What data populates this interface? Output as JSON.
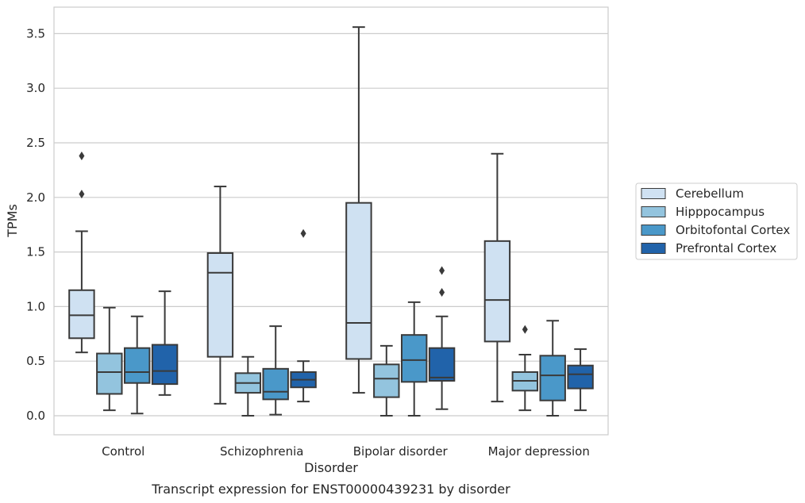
{
  "colors": {
    "Cerebellum": "#cfe1f2",
    "Hipppocampus": "#93c4de",
    "Orbitofontal Cortex": "#4a98c9",
    "Prefrontal Cortex": "#2163aa",
    "edge": "#3a3a3a",
    "grid": "#cccccc",
    "frame": "#cccccc"
  },
  "chart_data": {
    "type": "box",
    "title": "",
    "caption": "Transcript expression for ENST00000439231 by disorder",
    "xlabel": "Disorder",
    "ylabel": "TPMs",
    "ylim": [
      -0.18,
      3.67
    ],
    "yticks": [
      "0.0",
      "0.5",
      "1.0",
      "1.5",
      "2.0",
      "2.5",
      "3.0",
      "3.5"
    ],
    "grid": "horizontal",
    "legend_position": "right",
    "categories": [
      "Control",
      "Schizophrenia",
      "Bipolar disorder",
      "Major depression"
    ],
    "series": [
      {
        "name": "Cerebellum",
        "boxes": [
          {
            "whislo": 0.58,
            "q1": 0.71,
            "med": 0.92,
            "q3": 1.15,
            "whishi": 1.69,
            "fliers": [
              2.03,
              2.38
            ]
          },
          {
            "whislo": 0.11,
            "q1": 0.54,
            "med": 1.31,
            "q3": 1.49,
            "whishi": 2.1,
            "fliers": []
          },
          {
            "whislo": 0.21,
            "q1": 0.52,
            "med": 0.85,
            "q3": 1.95,
            "whishi": 3.56,
            "fliers": []
          },
          {
            "whislo": 0.13,
            "q1": 0.68,
            "med": 1.06,
            "q3": 1.6,
            "whishi": 2.4,
            "fliers": []
          }
        ]
      },
      {
        "name": "Hipppocampus",
        "boxes": [
          {
            "whislo": 0.05,
            "q1": 0.2,
            "med": 0.4,
            "q3": 0.57,
            "whishi": 0.99,
            "fliers": []
          },
          {
            "whislo": 0.0,
            "q1": 0.21,
            "med": 0.3,
            "q3": 0.39,
            "whishi": 0.54,
            "fliers": []
          },
          {
            "whislo": 0.0,
            "q1": 0.17,
            "med": 0.34,
            "q3": 0.47,
            "whishi": 0.64,
            "fliers": []
          },
          {
            "whislo": 0.05,
            "q1": 0.23,
            "med": 0.32,
            "q3": 0.4,
            "whishi": 0.56,
            "fliers": [
              0.79
            ]
          }
        ]
      },
      {
        "name": "Orbitofontal Cortex",
        "boxes": [
          {
            "whislo": 0.02,
            "q1": 0.3,
            "med": 0.4,
            "q3": 0.62,
            "whishi": 0.91,
            "fliers": []
          },
          {
            "whislo": 0.01,
            "q1": 0.15,
            "med": 0.22,
            "q3": 0.43,
            "whishi": 0.82,
            "fliers": []
          },
          {
            "whislo": 0.0,
            "q1": 0.31,
            "med": 0.51,
            "q3": 0.74,
            "whishi": 1.04,
            "fliers": []
          },
          {
            "whislo": 0.0,
            "q1": 0.14,
            "med": 0.37,
            "q3": 0.55,
            "whishi": 0.87,
            "fliers": []
          }
        ]
      },
      {
        "name": "Prefrontal Cortex",
        "boxes": [
          {
            "whislo": 0.19,
            "q1": 0.29,
            "med": 0.41,
            "q3": 0.65,
            "whishi": 1.14,
            "fliers": []
          },
          {
            "whislo": 0.13,
            "q1": 0.26,
            "med": 0.33,
            "q3": 0.4,
            "whishi": 0.5,
            "fliers": [
              1.67
            ]
          },
          {
            "whislo": 0.06,
            "q1": 0.32,
            "med": 0.35,
            "q3": 0.62,
            "whishi": 0.91,
            "fliers": [
              1.13,
              1.33
            ]
          },
          {
            "whislo": 0.05,
            "q1": 0.25,
            "med": 0.38,
            "q3": 0.46,
            "whishi": 0.61,
            "fliers": []
          }
        ]
      }
    ]
  }
}
